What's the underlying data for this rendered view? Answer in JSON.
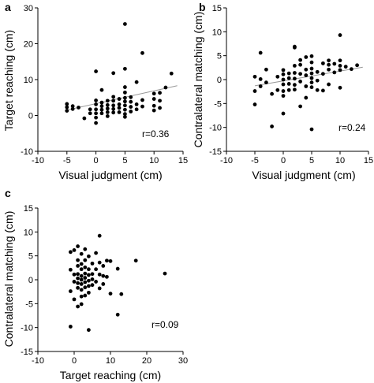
{
  "chart_data": [
    {
      "type": "scatter",
      "panel_letter": "a",
      "xlabel": "Visual judgment (cm)",
      "ylabel": "Target reaching (cm)",
      "xlim": [
        -10,
        15
      ],
      "ylim": [
        -10,
        30
      ],
      "xticks": [
        -10,
        -5,
        0,
        5,
        10,
        15
      ],
      "yticks": [
        -10,
        0,
        10,
        20,
        30
      ],
      "annotation": "r=0.36",
      "grid": false,
      "trendline": {
        "x": [
          -5,
          14
        ],
        "y": [
          1.5,
          8.3
        ]
      },
      "points": [
        [
          -5,
          3.2
        ],
        [
          -5,
          2.3
        ],
        [
          -5,
          1.3
        ],
        [
          -4,
          2.6
        ],
        [
          -4,
          1.8
        ],
        [
          -3,
          2.2
        ],
        [
          -2,
          -0.8
        ],
        [
          -1,
          1.7
        ],
        [
          -1,
          0.6
        ],
        [
          0,
          12.3
        ],
        [
          0,
          4.2
        ],
        [
          0,
          3.1
        ],
        [
          0,
          1.7
        ],
        [
          0,
          0.6
        ],
        [
          0,
          -0.6
        ],
        [
          0,
          -2.1
        ],
        [
          1,
          7.1
        ],
        [
          1,
          3.6
        ],
        [
          1,
          2.6
        ],
        [
          1,
          1.6
        ],
        [
          1,
          0.6
        ],
        [
          2,
          4.1
        ],
        [
          2,
          2.9
        ],
        [
          2,
          1.9
        ],
        [
          2,
          0.9
        ],
        [
          2,
          -0.2
        ],
        [
          3,
          11.8
        ],
        [
          3,
          5.2
        ],
        [
          3,
          4.1
        ],
        [
          3,
          2.8
        ],
        [
          3,
          1.8
        ],
        [
          3,
          0.8
        ],
        [
          4,
          4.6
        ],
        [
          4,
          3.1
        ],
        [
          4,
          2.1
        ],
        [
          4,
          0.9
        ],
        [
          5,
          25.5
        ],
        [
          5,
          13.0
        ],
        [
          5,
          7.9
        ],
        [
          5,
          6.4
        ],
        [
          5,
          4.9
        ],
        [
          5,
          3.9
        ],
        [
          5,
          2.8
        ],
        [
          5,
          1.6
        ],
        [
          5,
          0.4
        ],
        [
          5,
          -0.4
        ],
        [
          6,
          5.1
        ],
        [
          6,
          3.8
        ],
        [
          6,
          2.4
        ],
        [
          6,
          1.1
        ],
        [
          7,
          9.3
        ],
        [
          7,
          3.1
        ],
        [
          7,
          1.7
        ],
        [
          8,
          17.4
        ],
        [
          8,
          4.3
        ],
        [
          8,
          2.5
        ],
        [
          10,
          6.1
        ],
        [
          10,
          4.6
        ],
        [
          10,
          2.7
        ],
        [
          10,
          1.4
        ],
        [
          11,
          6.3
        ],
        [
          11,
          4.1
        ],
        [
          11,
          2.1
        ],
        [
          12,
          7.8
        ],
        [
          13,
          11.7
        ]
      ]
    },
    {
      "type": "scatter",
      "panel_letter": "b",
      "xlabel": "Visual judgment (cm)",
      "ylabel": "Contralateral matching (cm)",
      "xlim": [
        -10,
        15
      ],
      "ylim": [
        -15,
        15
      ],
      "xticks": [
        -10,
        -5,
        0,
        5,
        10,
        15
      ],
      "yticks": [
        -15,
        -10,
        -5,
        0,
        5,
        10,
        15
      ],
      "annotation": "r=0.24",
      "grid": false,
      "trendline": {
        "x": [
          -5,
          14
        ],
        "y": [
          -1.3,
          2.6
        ]
      },
      "points": [
        [
          -5,
          0.6
        ],
        [
          -5,
          -2.4
        ],
        [
          -5,
          -5.2
        ],
        [
          -4,
          5.6
        ],
        [
          -4,
          0.1
        ],
        [
          -4,
          -1.4
        ],
        [
          -3,
          2.1
        ],
        [
          -3,
          -0.6
        ],
        [
          -2,
          -3.0
        ],
        [
          -2,
          -9.8
        ],
        [
          -1,
          0.6
        ],
        [
          -1,
          -2.2
        ],
        [
          0,
          2.0
        ],
        [
          0,
          1.1
        ],
        [
          0,
          0.0
        ],
        [
          0,
          -1.0
        ],
        [
          0,
          -2.4
        ],
        [
          0,
          -3.4
        ],
        [
          0,
          -7.1
        ],
        [
          1,
          1.3
        ],
        [
          1,
          0.3
        ],
        [
          1,
          -0.9
        ],
        [
          1,
          -2.2
        ],
        [
          2,
          6.9
        ],
        [
          2,
          6.7
        ],
        [
          2,
          2.9
        ],
        [
          2,
          1.4
        ],
        [
          2,
          0.2
        ],
        [
          2,
          -1.1
        ],
        [
          2,
          -2.1
        ],
        [
          3,
          4.1
        ],
        [
          3,
          3.1
        ],
        [
          3,
          1.2
        ],
        [
          3,
          -0.4
        ],
        [
          3,
          -5.6
        ],
        [
          4,
          4.7
        ],
        [
          4,
          2.1
        ],
        [
          4,
          0.9
        ],
        [
          4,
          -1.4
        ],
        [
          4,
          -3.8
        ],
        [
          5,
          4.9
        ],
        [
          5,
          3.6
        ],
        [
          5,
          2.3
        ],
        [
          5,
          1.3
        ],
        [
          5,
          0.3
        ],
        [
          5,
          -0.6
        ],
        [
          5,
          -1.6
        ],
        [
          5,
          -10.4
        ],
        [
          6,
          1.6
        ],
        [
          6,
          -0.2
        ],
        [
          6,
          -2.2
        ],
        [
          7,
          3.4
        ],
        [
          7,
          1.2
        ],
        [
          7,
          -2.3
        ],
        [
          8,
          4.0
        ],
        [
          8,
          3.1
        ],
        [
          8,
          2.1
        ],
        [
          8,
          -1.0
        ],
        [
          9,
          3.3
        ],
        [
          9,
          1.5
        ],
        [
          10,
          9.3
        ],
        [
          10,
          4.0
        ],
        [
          10,
          2.9
        ],
        [
          10,
          2.0
        ],
        [
          10,
          -1.7
        ],
        [
          11,
          2.7
        ],
        [
          12,
          2.2
        ],
        [
          13,
          3.0
        ]
      ]
    },
    {
      "type": "scatter",
      "panel_letter": "c",
      "xlabel": "Target reaching (cm)",
      "ylabel": "Contralateral matching (cm)",
      "xlim": [
        -10,
        30
      ],
      "ylim": [
        -15,
        15
      ],
      "xticks": [
        -10,
        0,
        10,
        20,
        30
      ],
      "yticks": [
        -15,
        -10,
        -5,
        0,
        5,
        10,
        15
      ],
      "annotation": "r=0.09",
      "grid": false,
      "points": [
        [
          -1,
          5.8
        ],
        [
          -1,
          2.1
        ],
        [
          -1,
          -2.4
        ],
        [
          -1,
          -9.8
        ],
        [
          0,
          6.2
        ],
        [
          0,
          1.1
        ],
        [
          0,
          -0.4
        ],
        [
          0,
          -4.1
        ],
        [
          1,
          7.0
        ],
        [
          1,
          4.1
        ],
        [
          1,
          2.9
        ],
        [
          1,
          1.2
        ],
        [
          1,
          0.3
        ],
        [
          1,
          -0.7
        ],
        [
          1,
          -1.7
        ],
        [
          1,
          -5.6
        ],
        [
          2,
          5.4
        ],
        [
          2,
          3.3
        ],
        [
          2,
          2.2
        ],
        [
          2,
          0.8
        ],
        [
          2,
          0.0
        ],
        [
          2,
          -0.9
        ],
        [
          2,
          -2.1
        ],
        [
          2,
          -3.5
        ],
        [
          2,
          -5.1
        ],
        [
          3,
          6.4
        ],
        [
          3,
          4.1
        ],
        [
          3,
          2.6
        ],
        [
          3,
          1.3
        ],
        [
          3,
          0.4
        ],
        [
          3,
          -0.5
        ],
        [
          3,
          -1.6
        ],
        [
          3,
          -3.3
        ],
        [
          4,
          4.9
        ],
        [
          4,
          2.2
        ],
        [
          4,
          1.0
        ],
        [
          4,
          -0.2
        ],
        [
          4,
          -1.3
        ],
        [
          4,
          -2.7
        ],
        [
          4,
          -10.5
        ],
        [
          5,
          3.4
        ],
        [
          5,
          1.2
        ],
        [
          5,
          0.1
        ],
        [
          5,
          -1.1
        ],
        [
          6,
          5.6
        ],
        [
          6,
          2.2
        ],
        [
          6,
          -0.4
        ],
        [
          7,
          9.2
        ],
        [
          7,
          3.6
        ],
        [
          7,
          1.1
        ],
        [
          7,
          -1.8
        ],
        [
          8,
          2.9
        ],
        [
          8,
          0.8
        ],
        [
          8,
          -0.9
        ],
        [
          9,
          4.0
        ],
        [
          9,
          0.6
        ],
        [
          10,
          3.9
        ],
        [
          10,
          -2.9
        ],
        [
          12,
          2.3
        ],
        [
          12,
          -7.3
        ],
        [
          13,
          -3.0
        ],
        [
          17,
          4.0
        ],
        [
          25,
          1.3
        ]
      ]
    }
  ]
}
